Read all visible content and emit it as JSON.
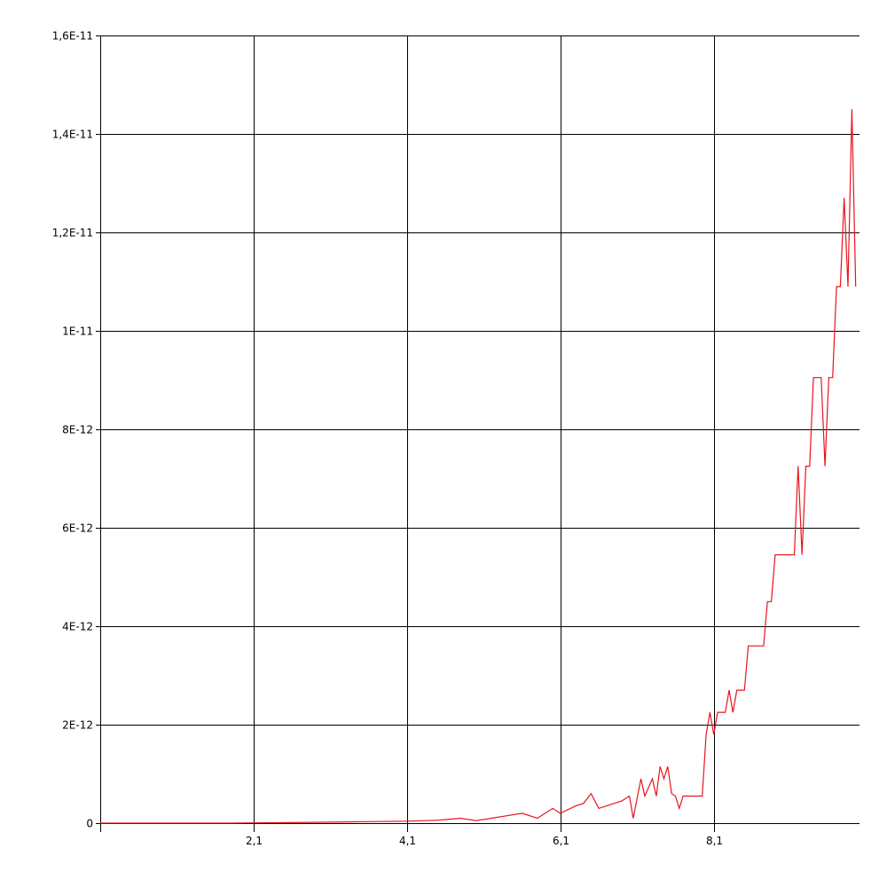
{
  "chart_data": {
    "type": "line",
    "title": "",
    "xlabel": "",
    "ylabel": "",
    "xlim": [
      0.1,
      10.0
    ],
    "ylim": [
      0,
      1.6e-11
    ],
    "grid": true,
    "x_ticks": [
      {
        "value": 2.1,
        "label": "2,1"
      },
      {
        "value": 4.1,
        "label": "4,1"
      },
      {
        "value": 6.1,
        "label": "6,1"
      },
      {
        "value": 8.1,
        "label": "8,1"
      }
    ],
    "y_ticks": [
      {
        "value": 0,
        "label": "0"
      },
      {
        "value": 2e-12,
        "label": "2E-12"
      },
      {
        "value": 4e-12,
        "label": "4E-12"
      },
      {
        "value": 6e-12,
        "label": "6E-12"
      },
      {
        "value": 8e-12,
        "label": "8E-12"
      },
      {
        "value": 1e-11,
        "label": "1E-11"
      },
      {
        "value": 1.2e-11,
        "label": "1,2E-11"
      },
      {
        "value": 1.4e-11,
        "label": "1,4E-11"
      },
      {
        "value": 1.6e-11,
        "label": "1,6E-11"
      }
    ],
    "series": [
      {
        "color": "#e8141b",
        "points": [
          [
            0.1,
            0
          ],
          [
            1.0,
            0
          ],
          [
            1.8,
            0
          ],
          [
            2.1,
            5e-15
          ],
          [
            2.6,
            1e-14
          ],
          [
            3.1,
            2e-14
          ],
          [
            3.6,
            3e-14
          ],
          [
            4.1,
            4e-14
          ],
          [
            4.5,
            6e-14
          ],
          [
            4.8,
            1e-13
          ],
          [
            5.0,
            5e-14
          ],
          [
            5.2,
            1e-13
          ],
          [
            5.4,
            1.5e-13
          ],
          [
            5.6,
            2e-13
          ],
          [
            5.8,
            1e-13
          ],
          [
            6.0,
            3e-13
          ],
          [
            6.1,
            2e-13
          ],
          [
            6.3,
            3.5e-13
          ],
          [
            6.4,
            4e-13
          ],
          [
            6.5,
            6e-13
          ],
          [
            6.6,
            3e-13
          ],
          [
            6.7,
            3.5e-13
          ],
          [
            6.8,
            4e-13
          ],
          [
            6.9,
            4.5e-13
          ],
          [
            7.0,
            5.5e-13
          ],
          [
            7.05,
            1e-13
          ],
          [
            7.15,
            9e-13
          ],
          [
            7.2,
            5.5e-13
          ],
          [
            7.3,
            9e-13
          ],
          [
            7.35,
            5.5e-13
          ],
          [
            7.4,
            1.15e-12
          ],
          [
            7.45,
            9e-13
          ],
          [
            7.5,
            1.15e-12
          ],
          [
            7.55,
            6e-13
          ],
          [
            7.6,
            5.5e-13
          ],
          [
            7.65,
            3e-13
          ],
          [
            7.7,
            5.5e-13
          ],
          [
            7.75,
            5.5e-13
          ],
          [
            7.95,
            5.5e-13
          ],
          [
            8.0,
            1.8e-12
          ],
          [
            8.05,
            2.25e-12
          ],
          [
            8.1,
            1.8e-12
          ],
          [
            8.15,
            2.25e-12
          ],
          [
            8.25,
            2.25e-12
          ],
          [
            8.3,
            2.7e-12
          ],
          [
            8.35,
            2.25e-12
          ],
          [
            8.4,
            2.7e-12
          ],
          [
            8.5,
            2.7e-12
          ],
          [
            8.55,
            3.6e-12
          ],
          [
            8.75,
            3.6e-12
          ],
          [
            8.8,
            4.5e-12
          ],
          [
            8.85,
            4.5e-12
          ],
          [
            8.9,
            5.45e-12
          ],
          [
            9.15,
            5.45e-12
          ],
          [
            9.2,
            7.25e-12
          ],
          [
            9.25,
            5.45e-12
          ],
          [
            9.3,
            7.25e-12
          ],
          [
            9.35,
            7.25e-12
          ],
          [
            9.4,
            9.05e-12
          ],
          [
            9.5,
            9.05e-12
          ],
          [
            9.55,
            7.25e-12
          ],
          [
            9.6,
            9.05e-12
          ],
          [
            9.65,
            9.05e-12
          ],
          [
            9.7,
            1.09e-11
          ],
          [
            9.75,
            1.09e-11
          ],
          [
            9.8,
            1.27e-11
          ],
          [
            9.85,
            1.09e-11
          ],
          [
            9.9,
            1.45e-11
          ],
          [
            9.95,
            1.09e-11
          ]
        ]
      }
    ]
  }
}
